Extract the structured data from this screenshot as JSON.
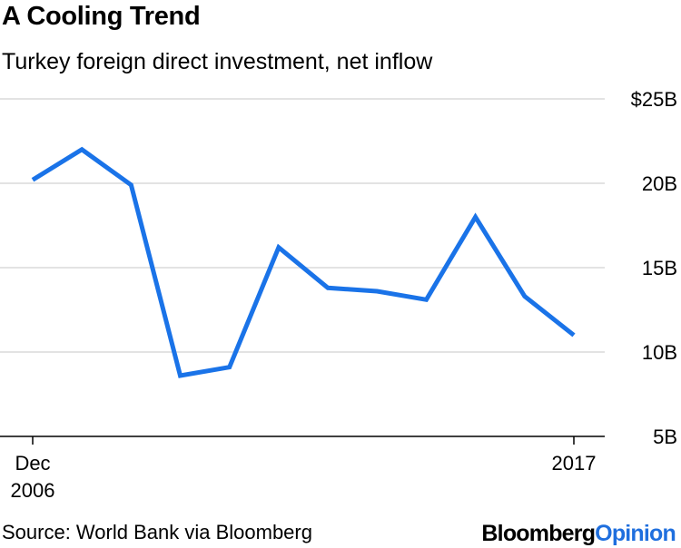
{
  "chart_data": {
    "type": "line",
    "title": "A Cooling Trend",
    "subtitle": "Turkey foreign direct investment, net inflow",
    "x": [
      2006,
      2007,
      2008,
      2009,
      2010,
      2011,
      2012,
      2013,
      2014,
      2015,
      2016,
      2017
    ],
    "series": [
      {
        "values": [
          20.2,
          22.0,
          19.9,
          8.6,
          9.1,
          16.2,
          13.8,
          13.6,
          13.1,
          18.0,
          13.3,
          11.0
        ]
      }
    ],
    "ylim": [
      5,
      25
    ],
    "y_ticks": [
      {
        "value": 25,
        "label": "$25B"
      },
      {
        "value": 20,
        "label": "20B"
      },
      {
        "value": 15,
        "label": "15B"
      },
      {
        "value": 10,
        "label": "10B"
      },
      {
        "value": 5,
        "label": "5B"
      }
    ],
    "x_ticks": [
      {
        "value": 2006,
        "label_line1": "Dec",
        "label_line2": "2006"
      },
      {
        "value": 2017,
        "label_line1": "2017",
        "label_line2": ""
      }
    ],
    "line_color": "#1a73e8",
    "grid_color": "#e3e3e3",
    "grid": true
  },
  "footer": {
    "source": "Source: World Bank via Bloomberg",
    "logo_brand": "Bloomberg",
    "logo_opinion": "Opinion"
  }
}
